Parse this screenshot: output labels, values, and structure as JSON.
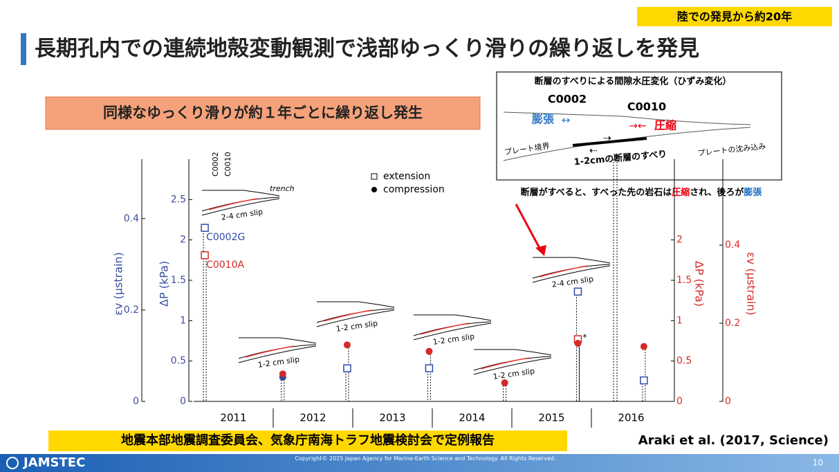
{
  "slide": {
    "badge": "陸での発見から約20年",
    "title": "長期孔内での連続地殻変動観測で浅部ゆっくり滑りの繰り返しを発見",
    "callout": "同様なゆっくり滑りが約１年ごとに繰り返し発生",
    "diagram": {
      "title": "断層のすべりによる間隙水圧変化（ひずみ変化）",
      "site1": "C0002",
      "site2": "C0010",
      "expansion": "膨張",
      "compression": "圧縮",
      "boundary": "プレート境界",
      "slip": "1-2cmの断層のすべり",
      "subduction": "プレートの沈み込み"
    },
    "caption": [
      "断層がすべると、すべった先の岩石は",
      "圧縮",
      "され、後ろが",
      "膨張"
    ],
    "report": "地震本部地震調査委員会、気象庁南海トラフ地震検討会で定例報告",
    "citation": "Araki et al. (2017, Science)",
    "logo": "JAMSTEC",
    "copyright": "Copyright© 2025 Japan Agency for Marine-Earth Science and Technology. All Rights Reserved.",
    "page": "10"
  },
  "chart_data": {
    "type": "scatter",
    "categories": [
      "2011",
      "2012",
      "2013",
      "2014",
      "2015",
      "2016"
    ],
    "xlim": [
      2011,
      2017
    ],
    "axes": [
      {
        "label": "εv (μstrain)",
        "color": "#3a4fa0",
        "side": "left",
        "ylim": [
          0,
          0.53
        ],
        "yticks": [
          0,
          0.2,
          0.4
        ]
      },
      {
        "label": "ΔP (kPa)",
        "color": "#3a4fa0",
        "side": "left",
        "ylim": [
          0,
          3
        ],
        "yticks": [
          0,
          0.5,
          1,
          1.5,
          2,
          2.5
        ]
      },
      {
        "label": "ΔP (kPa)",
        "color": "#d42a2a",
        "side": "right",
        "ylim": [
          0,
          3
        ],
        "yticks": [
          0,
          0.5,
          1,
          1.5,
          2
        ]
      },
      {
        "label": "εv (μstrain)",
        "color": "#d42a2a",
        "side": "right",
        "ylim": [
          0,
          0.62
        ],
        "yticks": [
          0,
          0.2,
          0.4
        ]
      }
    ],
    "legend": [
      {
        "label": "extension",
        "marker": "square"
      },
      {
        "label": "compression",
        "marker": "circle"
      }
    ],
    "series": [
      {
        "name": "C0002G",
        "color": "#2b4aa8",
        "x": [
          2011.14,
          2012.12,
          2012.93,
          2013.96,
          2014.91,
          2015.83,
          2016.66
        ],
        "values": [
          2.15,
          0.3,
          0.41,
          0.41,
          0.23,
          1.36,
          0.26
        ],
        "markers": [
          "square",
          "circle",
          "square",
          "square",
          "circle",
          "square",
          "square"
        ]
      },
      {
        "name": "C0010A",
        "color": "#d42a2a",
        "x": [
          2011.14,
          2012.12,
          2012.93,
          2013.96,
          2014.91,
          2015.83,
          2015.83,
          2016.66
        ],
        "values": [
          1.81,
          0.34,
          0.7,
          0.62,
          0.23,
          0.77,
          0.72,
          0.68
        ],
        "markers": [
          "square",
          "circle",
          "circle",
          "circle",
          "circle",
          "square",
          "circle",
          "circle"
        ]
      }
    ],
    "asterisk": "*",
    "insets": [
      {
        "label": "2-4 cm slip",
        "trench": "trench",
        "site1": "C0002",
        "site2": "C0010"
      },
      {
        "label": "1-2 cm slip"
      },
      {
        "label": "1-2 cm slip"
      },
      {
        "label": "1-2 cm slip"
      },
      {
        "label": "1-2 cm slip"
      },
      {
        "label": "2-4 cm slip"
      }
    ]
  }
}
